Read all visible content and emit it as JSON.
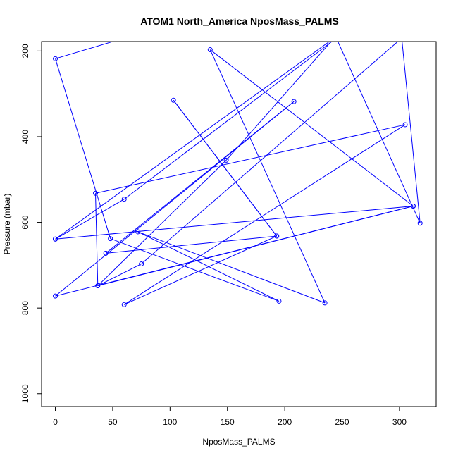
{
  "chart_data": {
    "type": "line",
    "title": "ATOM1 North_America NposMass_PALMS",
    "xlabel": "NposMass_PALMS",
    "ylabel": "Pressure (mbar)",
    "xlim": [
      -12,
      332
    ],
    "ylim": [
      1030,
      178
    ],
    "y_reversed": true,
    "xticks": [
      0,
      50,
      100,
      150,
      200,
      250,
      300
    ],
    "yticks": [
      200,
      400,
      600,
      800,
      1000
    ],
    "grid": false,
    "line_color": "#0000ff",
    "points": [
      {
        "x": 60,
        "y": 170,
        "marker": false
      },
      {
        "x": 0,
        "y": 218
      },
      {
        "x": 48,
        "y": 638
      },
      {
        "x": 195,
        "y": 784
      },
      {
        "x": 72,
        "y": 622
      },
      {
        "x": 235,
        "y": 788
      },
      {
        "x": 135,
        "y": 197
      },
      {
        "x": 312,
        "y": 562
      },
      {
        "x": 37,
        "y": 748
      },
      {
        "x": 35,
        "y": 532
      },
      {
        "x": 305,
        "y": 372
      },
      {
        "x": 60,
        "y": 792
      },
      {
        "x": 193,
        "y": 632
      },
      {
        "x": 103,
        "y": 315
      },
      {
        "x": 193,
        "y": 632
      },
      {
        "x": 44,
        "y": 672
      },
      {
        "x": 208,
        "y": 318
      },
      {
        "x": 0,
        "y": 772
      },
      {
        "x": 312,
        "y": 562
      },
      {
        "x": 0,
        "y": 639
      },
      {
        "x": 60,
        "y": 546
      },
      {
        "x": 245,
        "y": 170,
        "marker": false
      },
      {
        "x": 318,
        "y": 602
      },
      {
        "x": 302,
        "y": 170,
        "marker": false
      },
      {
        "x": 75,
        "y": 697
      },
      {
        "x": 37,
        "y": 748
      },
      {
        "x": 149,
        "y": 455
      },
      {
        "x": 243,
        "y": 170,
        "marker": false
      },
      {
        "x": 0,
        "y": 639
      }
    ]
  }
}
